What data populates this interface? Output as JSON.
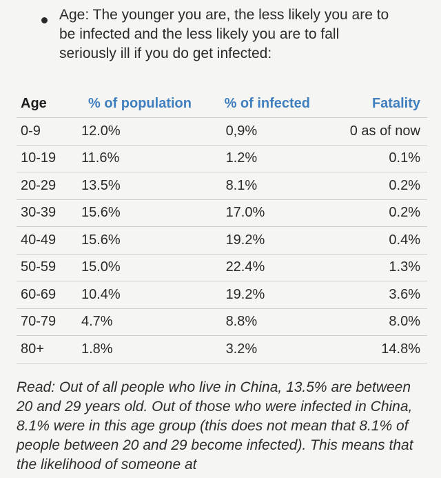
{
  "intro": {
    "text": "Age: The younger you are, the less likely you are to\nbe infected and the less likely you are to fall\nseriously ill if you do get infected:"
  },
  "table": {
    "headers": {
      "age": "Age",
      "population": "% of population",
      "infected": "% of infected",
      "fatality": "Fatality"
    },
    "rows": [
      {
        "age": "0-9",
        "population": "12.0%",
        "infected": "0,9%",
        "fatality": "0 as of now"
      },
      {
        "age": "10-19",
        "population": "11.6%",
        "infected": "1.2%",
        "fatality": "0.1%"
      },
      {
        "age": "20-29",
        "population": "13.5%",
        "infected": "8.1%",
        "fatality": "0.2%"
      },
      {
        "age": "30-39",
        "population": "15.6%",
        "infected": "17.0%",
        "fatality": "0.2%"
      },
      {
        "age": "40-49",
        "population": "15.6%",
        "infected": "19.2%",
        "fatality": "0.4%"
      },
      {
        "age": "50-59",
        "population": "15.0%",
        "infected": "22.4%",
        "fatality": "1.3%"
      },
      {
        "age": "60-69",
        "population": "10.4%",
        "infected": "19.2%",
        "fatality": "3.6%"
      },
      {
        "age": "70-79",
        "population": "4.7%",
        "infected": "8.8%",
        "fatality": "8.0%"
      },
      {
        "age": "80+",
        "population": "1.8%",
        "infected": "3.2%",
        "fatality": "14.8%"
      }
    ]
  },
  "note": {
    "text": "Read: Out of all people who live in China, 13.5% are between 20 and 29 years old. Out of those who were infected in China, 8.1% were in this age group (this does not mean that 8.1% of people between 20 and 29 become infected). This means that the likelihood of someone at"
  },
  "colors": {
    "header_accent": "#3f7fbf"
  }
}
